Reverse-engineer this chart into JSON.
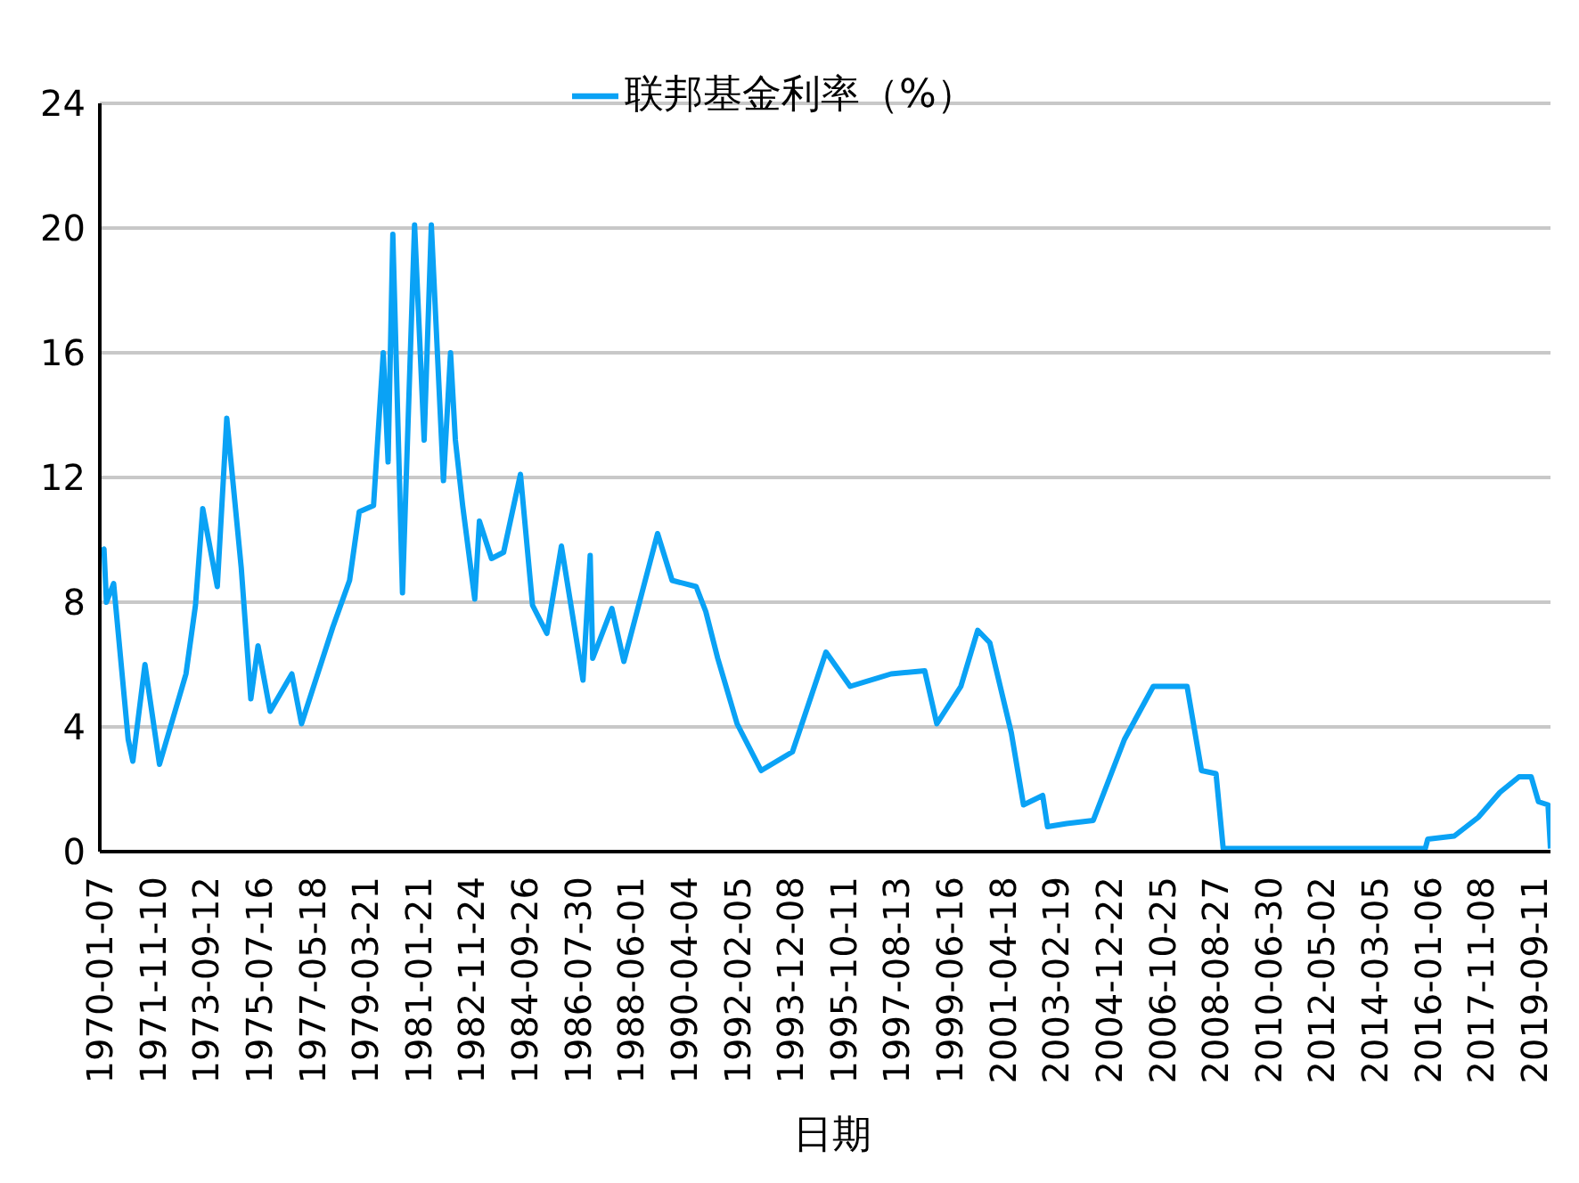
{
  "chart_data": {
    "type": "line",
    "xlabel": "日期",
    "legend": "top",
    "grid": "y",
    "marker": "none",
    "line_style": "solid",
    "xlim": [
      "1970-01-07",
      "2020-04-01"
    ],
    "xticks": [
      "1970-01-07",
      "1971-11-10",
      "1973-09-12",
      "1975-07-16",
      "1977-05-18",
      "1979-03-21",
      "1981-01-21",
      "1982-11-24",
      "1984-09-26",
      "1986-07-30",
      "1988-06-01",
      "1990-04-04",
      "1992-02-05",
      "1993-12-08",
      "1995-10-11",
      "1997-08-13",
      "1999-06-16",
      "2001-04-18",
      "2003-02-19",
      "2004-12-22",
      "2006-10-25",
      "2008-08-27",
      "2010-06-30",
      "2012-05-02",
      "2014-03-05",
      "2016-01-06",
      "2017-11-08",
      "2019-09-11"
    ],
    "ylim": [
      0,
      24
    ],
    "yticks": [
      0,
      4,
      8,
      12,
      16,
      20,
      24
    ],
    "series": [
      {
        "name": "联邦基金利率（%）",
        "color": "#0aa2f5",
        "x": [
          "1970-01-07",
          "1970-03",
          "1970-04",
          "1970-07",
          "1971-01",
          "1971-03",
          "1971-08",
          "1972-02",
          "1973-01",
          "1973-05",
          "1973-08",
          "1974-02",
          "1974-06",
          "1974-12",
          "1975-04",
          "1975-07",
          "1975-12",
          "1976-09",
          "1977-01",
          "1978-02",
          "1978-09",
          "1979-01",
          "1979-07",
          "1979-11",
          "1980-01",
          "1980-03",
          "1980-07",
          "1980-12",
          "1981-04",
          "1981-07",
          "1981-12",
          "1982-03",
          "1982-05",
          "1982-08",
          "1983-01",
          "1983-03",
          "1983-08",
          "1984-01",
          "1984-08",
          "1985-01",
          "1985-07",
          "1986-01",
          "1986-10",
          "1986-12-31",
          "1987-02",
          "1987-10",
          "1988-03",
          "1989-05",
          "1989-11",
          "1990-09",
          "1991-01",
          "1991-06",
          "1992-02",
          "1992-12",
          "1994-01",
          "1994-05",
          "1995-03",
          "1996-01",
          "1997-06",
          "1998-08",
          "1999-01",
          "1999-11",
          "2000-06",
          "2000-11",
          "2001-08",
          "2002-01",
          "2002-09",
          "2002-11",
          "2003-07",
          "2004-06",
          "2005-07",
          "2006-07",
          "2007-09",
          "2008-03",
          "2008-09",
          "2008-12",
          "2010-11",
          "2015-12",
          "2016-01",
          "2016-12",
          "2017-10",
          "2018-07",
          "2019-03",
          "2019-08",
          "2019-11",
          "2020-03",
          "2020-04-01"
        ],
        "values": [
          9.6,
          9.7,
          8.0,
          8.6,
          3.6,
          2.9,
          6.0,
          2.8,
          5.7,
          7.9,
          11.0,
          8.5,
          13.9,
          9.1,
          4.9,
          6.6,
          4.5,
          5.7,
          4.1,
          7.2,
          8.7,
          10.9,
          11.1,
          16.0,
          12.5,
          19.8,
          8.3,
          20.1,
          13.2,
          20.1,
          11.9,
          16.0,
          13.2,
          11.1,
          8.1,
          10.6,
          9.4,
          9.6,
          12.1,
          7.9,
          7.0,
          9.8,
          5.5,
          9.5,
          6.2,
          7.8,
          6.1,
          10.2,
          8.7,
          8.5,
          7.7,
          6.2,
          4.1,
          2.6,
          3.2,
          4.1,
          6.4,
          5.3,
          5.7,
          5.8,
          4.1,
          5.3,
          7.1,
          6.7,
          3.8,
          1.5,
          1.8,
          0.8,
          0.9,
          1.0,
          3.6,
          5.3,
          5.3,
          2.6,
          2.5,
          0.1,
          0.1,
          0.1,
          0.4,
          0.5,
          1.1,
          1.9,
          2.4,
          2.4,
          1.6,
          1.5,
          0.1
        ]
      }
    ]
  }
}
